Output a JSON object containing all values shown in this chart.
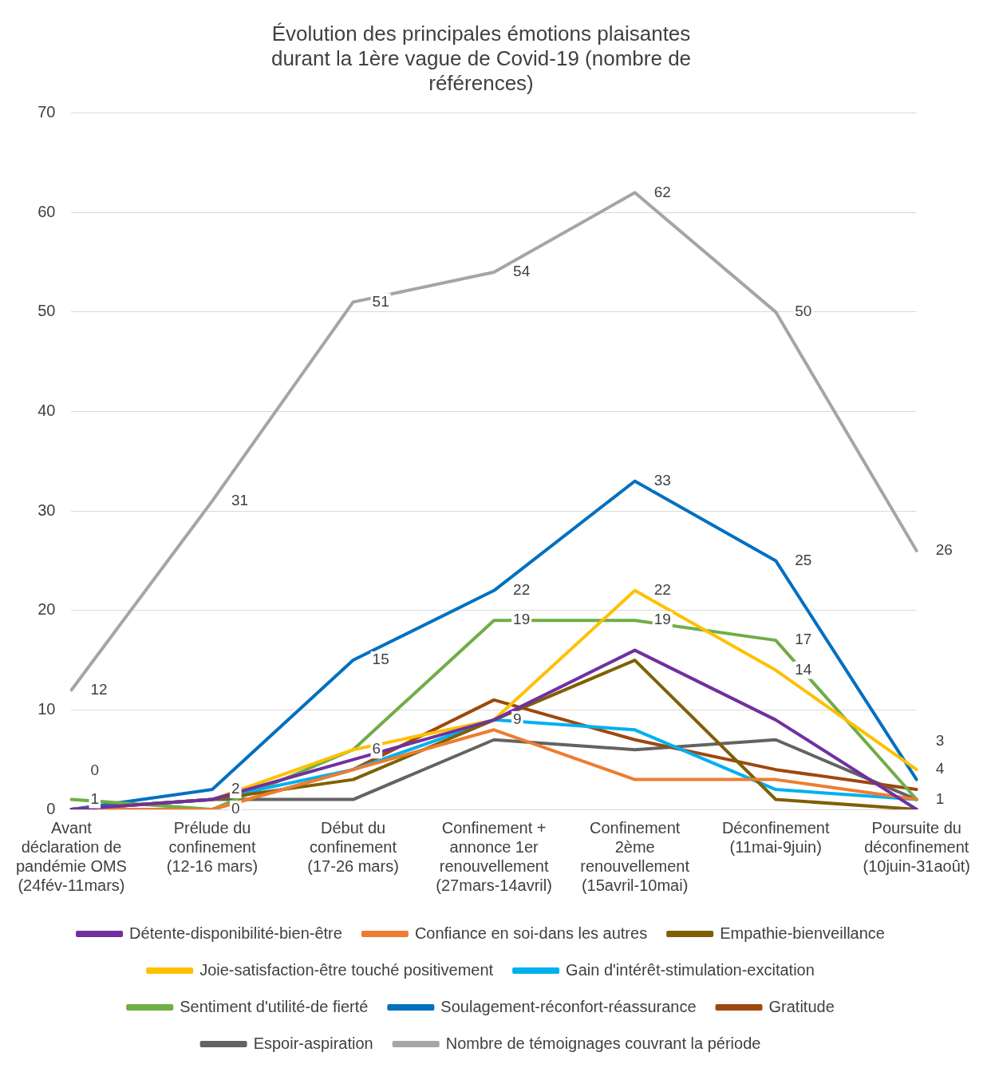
{
  "chart_data": {
    "type": "line",
    "title": "Évolution des principales émotions plaisantes durant la 1ère vague de Covid-19 (nombre de références)",
    "categories": [
      "Avant déclaration de pandémie OMS (24fév-11mars)",
      "Prélude du confinement (12-16 mars)",
      "Début du confinement (17-26 mars)",
      "Confinement + annonce 1er renouvellement (27mars-14avril)",
      "Confinement 2ème renouvellement (15avril-10mai)",
      "Déconfinement (11mai-9juin)",
      "Poursuite du déconfinement (10juin-31août)"
    ],
    "series": [
      {
        "name": "Détente-disponibilité-bien-être",
        "color": "#7030a0",
        "values": [
          0,
          1,
          5,
          9,
          16,
          9,
          0
        ]
      },
      {
        "name": "Confiance en soi-dans les autres",
        "color": "#ed7d31",
        "values": [
          0,
          0,
          4,
          8,
          3,
          3,
          1
        ]
      },
      {
        "name": "Empathie-bienveillance",
        "color": "#7f6000",
        "values": [
          0,
          1,
          3,
          9,
          15,
          1,
          0
        ]
      },
      {
        "name": "Joie-satisfaction-être touché positivement",
        "color": "#ffc000",
        "values": [
          0,
          1,
          6,
          9,
          22,
          14,
          4
        ],
        "value_labels": [
          null,
          null,
          "6",
          "9",
          "22",
          "14",
          "4"
        ]
      },
      {
        "name": "Gain d'intérêt-stimulation-excitation",
        "color": "#00b0f0",
        "values": [
          0,
          1,
          4,
          9,
          8,
          2,
          1
        ]
      },
      {
        "name": "Sentiment d'utilité-de fierté",
        "color": "#70ad47",
        "values": [
          1,
          0,
          6,
          19,
          19,
          17,
          1
        ],
        "value_labels": [
          "1",
          null,
          null,
          "19",
          "19",
          "17",
          null
        ]
      },
      {
        "name": "Soulagement-réconfort-réassurance",
        "color": "#0070c0",
        "values": [
          0,
          2,
          15,
          22,
          33,
          25,
          3
        ],
        "value_labels": [
          null,
          "2",
          "15",
          "22",
          "33",
          "25",
          "3"
        ]
      },
      {
        "name": "Gratitude",
        "color": "#9e480e",
        "values": [
          0,
          0,
          4,
          11,
          7,
          4,
          2
        ],
        "value_labels": [
          "0",
          "0",
          null,
          null,
          null,
          null,
          null
        ]
      },
      {
        "name": "Espoir-aspiration",
        "color": "#636363",
        "values": [
          0,
          1,
          1,
          7,
          6,
          7,
          1
        ],
        "value_labels": [
          null,
          null,
          null,
          null,
          null,
          null,
          "1"
        ]
      },
      {
        "name": "Nombre de témoignages couvrant la période",
        "color": "#a5a5a5",
        "values": [
          12,
          31,
          51,
          54,
          62,
          50,
          26
        ],
        "value_labels": [
          "12",
          "31",
          "51",
          "54",
          "62",
          "50",
          "26"
        ]
      }
    ],
    "ylim": [
      0,
      70
    ],
    "yticks": [
      0,
      10,
      20,
      30,
      40,
      50,
      60,
      70
    ],
    "grid": "y",
    "legend": "bottom",
    "marker": "none",
    "line_style": "solid"
  }
}
